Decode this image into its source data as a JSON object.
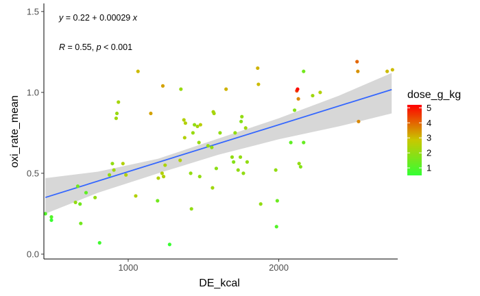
{
  "chart_data": {
    "type": "scatter",
    "xlabel": "DE_kcal",
    "ylabel": "oxi_rate_mean",
    "xlim": [
      440,
      2790
    ],
    "ylim": [
      -0.03,
      1.55
    ],
    "x_ticks": [
      1000,
      2000
    ],
    "x_tick_labels": [
      "1000",
      "2000"
    ],
    "y_ticks": [
      0.0,
      0.5,
      1.0,
      1.5
    ],
    "y_tick_labels": [
      "0.0",
      "0.5",
      "1.0",
      "1.5"
    ],
    "grid": false,
    "annotations": {
      "equation": {
        "y": "y",
        "eq": " = 0.22 + 0.00029 ",
        "x": "x"
      },
      "stats": {
        "R": "R",
        "r_val": " = 0.55, ",
        "p": "p",
        "p_val": " < 0.001"
      }
    },
    "regression": {
      "intercept": 0.22,
      "slope": 0.00029,
      "x_range": [
        450,
        2750
      ],
      "ci_lower": [
        [
          450,
          0.25
        ],
        [
          800,
          0.38
        ],
        [
          1200,
          0.5
        ],
        [
          1600,
          0.615
        ],
        [
          2000,
          0.71
        ],
        [
          2400,
          0.79
        ],
        [
          2750,
          0.87
        ]
      ],
      "ci_upper": [
        [
          450,
          0.47
        ],
        [
          800,
          0.51
        ],
        [
          1200,
          0.59
        ],
        [
          1600,
          0.715
        ],
        [
          2000,
          0.84
        ],
        [
          2400,
          0.98
        ],
        [
          2750,
          1.12
        ]
      ],
      "line_color": "#3366FF",
      "ribbon_color": "#d3d3d3"
    },
    "legend": {
      "title": "dose_g_kg",
      "placement": "right",
      "min": 0.5,
      "max": 5.2,
      "ticks": [
        1,
        2,
        3,
        4,
        5
      ],
      "tick_labels": [
        "1",
        "2",
        "3",
        "4",
        "5"
      ],
      "low_color": "#33ff33",
      "high_color": "#ff0000"
    },
    "points": [
      [
        450,
        0.25,
        1.0
      ],
      [
        490,
        0.23,
        1.0
      ],
      [
        490,
        0.21,
        0.6
      ],
      [
        650,
        0.32,
        2.0
      ],
      [
        665,
        0.42,
        1.5
      ],
      [
        680,
        0.31,
        1.5
      ],
      [
        685,
        0.19,
        1.5
      ],
      [
        720,
        0.38,
        1.2
      ],
      [
        780,
        0.35,
        2.0
      ],
      [
        810,
        0.07,
        0.7
      ],
      [
        875,
        0.49,
        2.0
      ],
      [
        895,
        0.56,
        2.0
      ],
      [
        905,
        0.52,
        2.2
      ],
      [
        920,
        0.84,
        2.2
      ],
      [
        925,
        0.87,
        2.1
      ],
      [
        935,
        0.94,
        2.3
      ],
      [
        965,
        0.56,
        2.5
      ],
      [
        985,
        0.49,
        2.5
      ],
      [
        1050,
        0.36,
        2.5
      ],
      [
        1065,
        1.13,
        3.0
      ],
      [
        1150,
        0.87,
        3.3
      ],
      [
        1195,
        0.33,
        1.5
      ],
      [
        1200,
        0.47,
        2.5
      ],
      [
        1225,
        0.5,
        2.5
      ],
      [
        1230,
        1.04,
        3.3
      ],
      [
        1235,
        0.48,
        2.5
      ],
      [
        1245,
        0.55,
        2.4
      ],
      [
        1275,
        0.06,
        0.6
      ],
      [
        1345,
        0.58,
        2.5
      ],
      [
        1350,
        1.02,
        2.1
      ],
      [
        1370,
        0.83,
        2.5
      ],
      [
        1375,
        0.72,
        2.5
      ],
      [
        1380,
        0.81,
        2.5
      ],
      [
        1415,
        0.5,
        2.0
      ],
      [
        1420,
        0.28,
        2.0
      ],
      [
        1430,
        0.75,
        2.1
      ],
      [
        1440,
        0.8,
        2.0
      ],
      [
        1460,
        0.79,
        2.3
      ],
      [
        1470,
        0.69,
        2.1
      ],
      [
        1475,
        0.48,
        2.0
      ],
      [
        1480,
        0.8,
        2.6
      ],
      [
        1530,
        0.67,
        2.0
      ],
      [
        1555,
        0.66,
        2.0
      ],
      [
        1560,
        0.41,
        2.2
      ],
      [
        1565,
        0.88,
        2.4
      ],
      [
        1570,
        0.87,
        2.3
      ],
      [
        1585,
        0.53,
        1.9
      ],
      [
        1610,
        0.75,
        2.0
      ],
      [
        1650,
        1.02,
        3.1
      ],
      [
        1690,
        0.6,
        2.0
      ],
      [
        1700,
        0.57,
        1.8
      ],
      [
        1710,
        0.75,
        2.0
      ],
      [
        1730,
        0.52,
        2.0
      ],
      [
        1745,
        0.6,
        2.0
      ],
      [
        1750,
        0.82,
        1.8
      ],
      [
        1755,
        0.85,
        2.0
      ],
      [
        1765,
        0.5,
        2.0
      ],
      [
        1780,
        0.78,
        2.2
      ],
      [
        1790,
        0.57,
        2.0
      ],
      [
        1860,
        1.15,
        3.1
      ],
      [
        1865,
        1.05,
        3.0
      ],
      [
        1880,
        0.31,
        2.0
      ],
      [
        1980,
        0.52,
        2.0
      ],
      [
        1985,
        0.17,
        1.0
      ],
      [
        1990,
        0.33,
        1.4
      ],
      [
        2080,
        0.69,
        1.2
      ],
      [
        2105,
        0.89,
        1.8
      ],
      [
        2120,
        1.01,
        4.5
      ],
      [
        2125,
        1.02,
        5.1
      ],
      [
        2130,
        0.96,
        3.6
      ],
      [
        2135,
        0.56,
        2.0
      ],
      [
        2145,
        0.54,
        1.8
      ],
      [
        2165,
        0.69,
        1.3
      ],
      [
        2165,
        1.13,
        1.5
      ],
      [
        2225,
        0.98,
        2.2
      ],
      [
        2275,
        1.0,
        2.5
      ],
      [
        2520,
        1.19,
        4.0
      ],
      [
        2525,
        1.13,
        3.5
      ],
      [
        2530,
        0.82,
        3.6
      ],
      [
        2720,
        1.13,
        3.0
      ],
      [
        2755,
        1.14,
        3.0
      ]
    ]
  }
}
